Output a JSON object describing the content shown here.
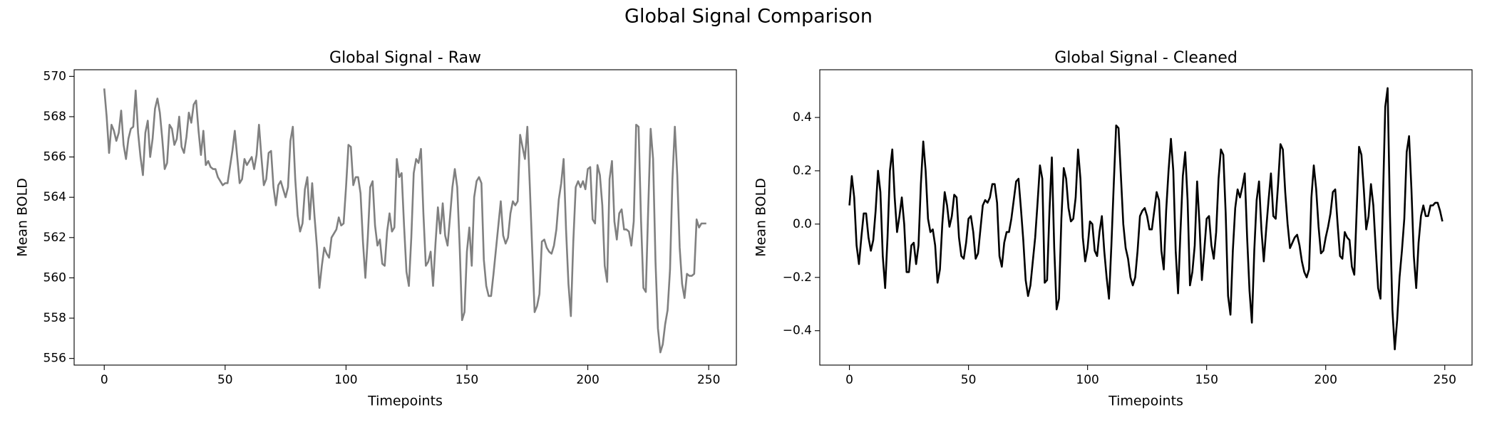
{
  "title": "Global Signal Comparison",
  "chart_data": [
    {
      "type": "line",
      "title": "Global Signal - Raw",
      "x_label": "Timepoints",
      "y_label": "Mean BOLD",
      "xlim": [
        -12.45,
        261.45
      ],
      "xticks": [
        0,
        50,
        100,
        150,
        200,
        250
      ],
      "ylim": [
        555.67,
        570.33
      ],
      "yticks": [
        556,
        558,
        560,
        562,
        564,
        566,
        568,
        570
      ],
      "x": [
        0,
        1,
        2,
        3,
        4,
        5,
        6,
        7,
        8,
        9,
        10,
        11,
        12,
        13,
        14,
        15,
        16,
        17,
        18,
        19,
        20,
        21,
        22,
        23,
        24,
        25,
        26,
        27,
        28,
        29,
        30,
        31,
        32,
        33,
        34,
        35,
        36,
        37,
        38,
        39,
        40,
        41,
        42,
        43,
        44,
        45,
        46,
        47,
        48,
        49,
        50,
        51,
        52,
        53,
        54,
        55,
        56,
        57,
        58,
        59,
        60,
        61,
        62,
        63,
        64,
        65,
        66,
        67,
        68,
        69,
        70,
        71,
        72,
        73,
        74,
        75,
        76,
        77,
        78,
        79,
        80,
        81,
        82,
        83,
        84,
        85,
        86,
        87,
        88,
        89,
        90,
        91,
        92,
        93,
        94,
        95,
        96,
        97,
        98,
        99,
        100,
        101,
        102,
        103,
        104,
        105,
        106,
        107,
        108,
        109,
        110,
        111,
        112,
        113,
        114,
        115,
        116,
        117,
        118,
        119,
        120,
        121,
        122,
        123,
        124,
        125,
        126,
        127,
        128,
        129,
        130,
        131,
        132,
        133,
        134,
        135,
        136,
        137,
        138,
        139,
        140,
        141,
        142,
        143,
        144,
        145,
        146,
        147,
        148,
        149,
        150,
        151,
        152,
        153,
        154,
        155,
        156,
        157,
        158,
        159,
        160,
        161,
        162,
        163,
        164,
        165,
        166,
        167,
        168,
        169,
        170,
        171,
        172,
        173,
        174,
        175,
        176,
        177,
        178,
        179,
        180,
        181,
        182,
        183,
        184,
        185,
        186,
        187,
        188,
        189,
        190,
        191,
        192,
        193,
        194,
        195,
        196,
        197,
        198,
        199,
        200,
        201,
        202,
        203,
        204,
        205,
        206,
        207,
        208,
        209,
        210,
        211,
        212,
        213,
        214,
        215,
        216,
        217,
        218,
        219,
        220,
        221,
        222,
        223,
        224,
        225,
        226,
        227,
        228,
        229,
        230,
        231,
        232,
        233,
        234,
        235,
        236,
        237,
        238,
        239,
        240,
        241,
        242,
        243,
        244,
        245,
        246,
        247,
        248,
        249
      ],
      "series": [
        {
          "color": "#808080",
          "values": [
            569.4,
            568.0,
            566.2,
            567.6,
            567.3,
            566.8,
            567.2,
            568.3,
            566.6,
            565.9,
            566.9,
            567.4,
            567.5,
            569.3,
            567.2,
            566.0,
            565.1,
            567.2,
            567.8,
            566.0,
            566.9,
            568.4,
            568.9,
            568.2,
            566.9,
            565.4,
            565.7,
            567.6,
            567.4,
            566.6,
            566.9,
            568.0,
            566.5,
            566.2,
            567.0,
            568.2,
            567.7,
            568.6,
            568.8,
            567.3,
            566.1,
            567.3,
            565.6,
            565.8,
            565.5,
            565.4,
            565.4,
            565.0,
            564.8,
            564.6,
            564.7,
            564.7,
            565.5,
            566.3,
            567.3,
            566.0,
            564.7,
            564.9,
            565.9,
            565.6,
            565.8,
            566.0,
            565.4,
            566.1,
            567.6,
            566.0,
            564.6,
            564.9,
            566.2,
            566.3,
            564.5,
            563.6,
            564.6,
            564.8,
            564.4,
            564.0,
            564.5,
            566.8,
            567.5,
            564.9,
            563.1,
            562.3,
            562.7,
            564.4,
            565.0,
            562.9,
            564.7,
            563.0,
            561.5,
            559.5,
            560.6,
            561.5,
            561.2,
            561.0,
            562.0,
            562.2,
            562.4,
            563.0,
            562.6,
            562.7,
            564.5,
            566.6,
            566.5,
            564.6,
            565.0,
            565.0,
            564.2,
            561.8,
            560.0,
            562.0,
            564.5,
            564.8,
            562.6,
            561.6,
            561.9,
            560.7,
            560.6,
            562.3,
            563.2,
            562.3,
            562.5,
            565.9,
            565.0,
            565.2,
            562.6,
            560.3,
            559.6,
            562.0,
            565.2,
            565.9,
            565.7,
            566.4,
            563.2,
            560.6,
            560.8,
            561.3,
            559.6,
            561.7,
            563.5,
            562.2,
            563.7,
            562.1,
            561.6,
            563.0,
            564.5,
            565.4,
            564.5,
            561.6,
            557.9,
            558.3,
            561.3,
            562.5,
            560.6,
            564.0,
            564.8,
            565.0,
            564.7,
            560.9,
            559.6,
            559.1,
            559.1,
            560.2,
            561.4,
            562.6,
            563.8,
            562.1,
            561.7,
            562.0,
            563.2,
            563.8,
            563.6,
            563.8,
            567.1,
            566.5,
            565.9,
            567.5,
            564.6,
            561.4,
            558.3,
            558.6,
            559.2,
            561.8,
            561.9,
            561.5,
            561.3,
            561.2,
            561.6,
            562.4,
            563.9,
            564.7,
            565.9,
            562.4,
            559.7,
            558.1,
            561.8,
            564.5,
            564.8,
            564.5,
            564.8,
            564.4,
            565.4,
            565.5,
            562.9,
            562.7,
            565.6,
            565.1,
            563.6,
            560.6,
            559.8,
            564.9,
            565.8,
            562.8,
            561.9,
            563.2,
            563.4,
            562.4,
            562.4,
            562.3,
            561.6,
            562.8,
            567.6,
            567.5,
            562.9,
            559.5,
            559.3,
            563.5,
            567.4,
            565.9,
            560.8,
            557.5,
            556.3,
            556.7,
            557.7,
            558.4,
            560.4,
            564.9,
            567.5,
            565.1,
            561.5,
            559.7,
            559.0,
            560.2,
            560.1,
            560.1,
            560.2,
            562.9,
            562.5,
            562.7,
            562.7,
            562.7
          ]
        }
      ]
    },
    {
      "type": "line",
      "title": "Global Signal - Cleaned",
      "x_label": "Timepoints",
      "y_label": "Mean BOLD",
      "xlim": [
        -12.45,
        261.45
      ],
      "xticks": [
        0,
        50,
        100,
        150,
        200,
        250
      ],
      "ylim": [
        -0.529,
        0.579
      ],
      "yticks": [
        {
          "value": -0.4,
          "label": "−0.4"
        },
        {
          "value": -0.2,
          "label": "−0.2"
        },
        {
          "value": 0,
          "label": "0.0"
        },
        0.2,
        0.4
      ],
      "x": [
        0,
        1,
        2,
        3,
        4,
        5,
        6,
        7,
        8,
        9,
        10,
        11,
        12,
        13,
        14,
        15,
        16,
        17,
        18,
        19,
        20,
        21,
        22,
        23,
        24,
        25,
        26,
        27,
        28,
        29,
        30,
        31,
        32,
        33,
        34,
        35,
        36,
        37,
        38,
        39,
        40,
        41,
        42,
        43,
        44,
        45,
        46,
        47,
        48,
        49,
        50,
        51,
        52,
        53,
        54,
        55,
        56,
        57,
        58,
        59,
        60,
        61,
        62,
        63,
        64,
        65,
        66,
        67,
        68,
        69,
        70,
        71,
        72,
        73,
        74,
        75,
        76,
        77,
        78,
        79,
        80,
        81,
        82,
        83,
        84,
        85,
        86,
        87,
        88,
        89,
        90,
        91,
        92,
        93,
        94,
        95,
        96,
        97,
        98,
        99,
        100,
        101,
        102,
        103,
        104,
        105,
        106,
        107,
        108,
        109,
        110,
        111,
        112,
        113,
        114,
        115,
        116,
        117,
        118,
        119,
        120,
        121,
        122,
        123,
        124,
        125,
        126,
        127,
        128,
        129,
        130,
        131,
        132,
        133,
        134,
        135,
        136,
        137,
        138,
        139,
        140,
        141,
        142,
        143,
        144,
        145,
        146,
        147,
        148,
        149,
        150,
        151,
        152,
        153,
        154,
        155,
        156,
        157,
        158,
        159,
        160,
        161,
        162,
        163,
        164,
        165,
        166,
        167,
        168,
        169,
        170,
        171,
        172,
        173,
        174,
        175,
        176,
        177,
        178,
        179,
        180,
        181,
        182,
        183,
        184,
        185,
        186,
        187,
        188,
        189,
        190,
        191,
        192,
        193,
        194,
        195,
        196,
        197,
        198,
        199,
        200,
        201,
        202,
        203,
        204,
        205,
        206,
        207,
        208,
        209,
        210,
        211,
        212,
        213,
        214,
        215,
        216,
        217,
        218,
        219,
        220,
        221,
        222,
        223,
        224,
        225,
        226,
        227,
        228,
        229,
        230,
        231,
        232,
        233,
        234,
        235,
        236,
        237,
        238,
        239,
        240,
        241,
        242,
        243,
        244,
        245,
        246,
        247,
        248,
        249
      ],
      "series": [
        {
          "color": "#000000",
          "values": [
            0.07,
            0.18,
            0.1,
            -0.08,
            -0.15,
            -0.05,
            0.04,
            0.04,
            -0.05,
            -0.1,
            -0.06,
            0.05,
            0.2,
            0.12,
            -0.12,
            -0.24,
            -0.05,
            0.2,
            0.28,
            0.1,
            -0.03,
            0.03,
            0.1,
            0.0,
            -0.18,
            -0.18,
            -0.08,
            -0.07,
            -0.15,
            -0.08,
            0.15,
            0.31,
            0.2,
            0.02,
            -0.03,
            -0.02,
            -0.08,
            -0.22,
            -0.17,
            0.0,
            0.12,
            0.07,
            -0.01,
            0.03,
            0.11,
            0.1,
            -0.05,
            -0.12,
            -0.13,
            -0.07,
            0.02,
            0.03,
            -0.03,
            -0.13,
            -0.11,
            -0.02,
            0.07,
            0.09,
            0.08,
            0.1,
            0.15,
            0.15,
            0.08,
            -0.12,
            -0.16,
            -0.07,
            -0.03,
            -0.03,
            0.02,
            0.09,
            0.16,
            0.17,
            0.06,
            -0.06,
            -0.21,
            -0.27,
            -0.23,
            -0.14,
            -0.05,
            0.08,
            0.22,
            0.17,
            -0.22,
            -0.21,
            0.05,
            0.25,
            -0.09,
            -0.32,
            -0.28,
            0.02,
            0.21,
            0.17,
            0.06,
            0.01,
            0.02,
            0.1,
            0.28,
            0.17,
            -0.05,
            -0.14,
            -0.09,
            0.01,
            0.0,
            -0.1,
            -0.12,
            -0.03,
            0.03,
            -0.1,
            -0.2,
            -0.28,
            -0.08,
            0.15,
            0.37,
            0.36,
            0.18,
            0.0,
            -0.09,
            -0.13,
            -0.2,
            -0.23,
            -0.2,
            -0.1,
            0.03,
            0.05,
            0.06,
            0.03,
            -0.02,
            -0.02,
            0.05,
            0.12,
            0.09,
            -0.1,
            -0.17,
            0.05,
            0.2,
            0.32,
            0.2,
            -0.1,
            -0.26,
            -0.03,
            0.18,
            0.27,
            0.09,
            -0.23,
            -0.18,
            -0.08,
            0.16,
            0.0,
            -0.21,
            -0.1,
            0.02,
            0.03,
            -0.08,
            -0.13,
            -0.03,
            0.17,
            0.28,
            0.26,
            0.04,
            -0.27,
            -0.34,
            -0.1,
            0.06,
            0.13,
            0.1,
            0.14,
            0.19,
            -0.05,
            -0.25,
            -0.37,
            -0.1,
            0.09,
            0.16,
            -0.02,
            -0.14,
            -0.02,
            0.09,
            0.19,
            0.03,
            0.02,
            0.15,
            0.3,
            0.28,
            0.12,
            0.0,
            -0.09,
            -0.07,
            -0.05,
            -0.04,
            -0.08,
            -0.14,
            -0.18,
            -0.2,
            -0.17,
            0.1,
            0.22,
            0.13,
            -0.01,
            -0.11,
            -0.1,
            -0.05,
            -0.01,
            0.04,
            0.12,
            0.13,
            0.0,
            -0.12,
            -0.13,
            -0.03,
            -0.05,
            -0.06,
            -0.16,
            -0.19,
            0.05,
            0.29,
            0.26,
            0.13,
            -0.02,
            0.03,
            0.15,
            0.07,
            -0.09,
            -0.24,
            -0.28,
            0.08,
            0.44,
            0.51,
            0.03,
            -0.32,
            -0.47,
            -0.36,
            -0.2,
            -0.1,
            0.02,
            0.27,
            0.33,
            0.13,
            -0.12,
            -0.24,
            -0.07,
            0.03,
            0.07,
            0.03,
            0.03,
            0.07,
            0.07,
            0.08,
            0.08,
            0.05,
            0.01
          ]
        }
      ]
    }
  ]
}
